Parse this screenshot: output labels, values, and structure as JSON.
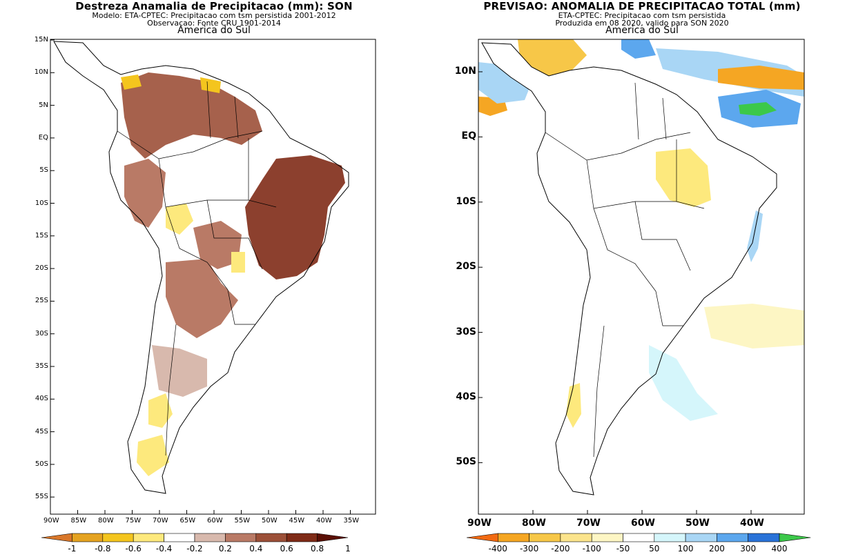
{
  "left": {
    "title": "Destreza Anamalia de Precipitacao (mm): SON",
    "subtitle1": "Modelo: ETA-CPTEC: Precipitacao com tsm persistida 2001-2012",
    "subtitle2": "Observacao: Fonte CRU 1901-2014",
    "region": "America do Sul",
    "lat_labels": [
      "15N",
      "10N",
      "5N",
      "EQ",
      "5S",
      "10S",
      "15S",
      "20S",
      "25S",
      "30S",
      "35S",
      "40S",
      "45S",
      "50S",
      "55S"
    ],
    "lon_labels": [
      "90W",
      "85W",
      "80W",
      "75W",
      "70W",
      "65W",
      "60W",
      "55W",
      "50W",
      "45W",
      "40W",
      "35W"
    ],
    "colorbar": {
      "labels": [
        "-1",
        "-0.8",
        "-0.6",
        "-0.4",
        "-0.2",
        "0.2",
        "0.4",
        "0.6",
        "0.8",
        "1"
      ],
      "colors": [
        "#d9772a",
        "#e5a321",
        "#f4c51e",
        "#fde97d",
        "#ffffff",
        "#d8b9ad",
        "#b97a66",
        "#9c5038",
        "#7f2b17",
        "#5a0f04"
      ]
    }
  },
  "right": {
    "title": "PREVISAO: ANOMALIA DE PRECIPITACAO TOTAL (mm)",
    "subtitle1": "ETA-CPTEC: Precipitacao com tsm persistida",
    "subtitle2": "Produzida em 08 2020, valido para SON 2020",
    "region": "America do Sul",
    "lat_labels": [
      "10N",
      "EQ",
      "10S",
      "20S",
      "30S",
      "40S",
      "50S"
    ],
    "lon_labels": [
      "90W",
      "80W",
      "70W",
      "60W",
      "50W",
      "40W"
    ],
    "colorbar": {
      "labels": [
        "-400",
        "-300",
        "-200",
        "-100",
        "-50",
        "50",
        "100",
        "200",
        "300",
        "400"
      ],
      "colors": [
        "#f26a12",
        "#f5a623",
        "#f7c748",
        "#fbe48c",
        "#fdf6c4",
        "#ffffff",
        "#d5f6fb",
        "#a9d6f5",
        "#5ca7ee",
        "#2a73d8",
        "#3cc84a"
      ]
    }
  }
}
